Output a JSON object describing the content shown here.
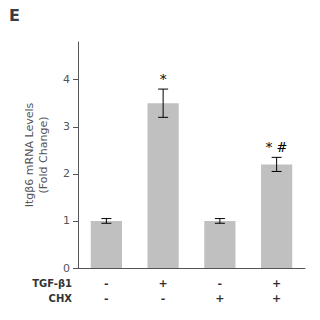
{
  "chart_data": {
    "type": "bar",
    "title": "E",
    "categories": [
      "-\n-",
      "+\n-",
      "-\n+",
      "+\n+"
    ],
    "xlabel": "TGF-β1\nCHX",
    "ylabel": "Itgβ6 mRNA Levels\n(Fold Change)",
    "values": [
      1.0,
      3.5,
      1.0,
      2.2
    ],
    "errors": [
      0.05,
      0.3,
      0.05,
      0.15
    ],
    "color": "#c0c0c0",
    "ylim": [
      0,
      4.8
    ],
    "yticks": [
      0,
      1,
      2,
      3,
      4
    ],
    "grid": false,
    "annotations": [
      {
        "x": "+\n-",
        "text": "*"
      },
      {
        "x": "+\n+",
        "text": "* #"
      }
    ]
  }
}
